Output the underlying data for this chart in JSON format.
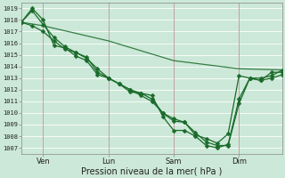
{
  "background_color": "#cce8d8",
  "grid_color": "#b0d8c0",
  "line_color": "#1a6b2a",
  "marker_color": "#1a6b2a",
  "ylabel_ticks": [
    1007,
    1008,
    1009,
    1010,
    1011,
    1012,
    1013,
    1014,
    1015,
    1016,
    1017,
    1018,
    1019
  ],
  "xlim": [
    0,
    96
  ],
  "ylim": [
    1006.5,
    1019.5
  ],
  "xlabel": "Pression niveau de la mer( hPa )",
  "x_tick_positions": [
    8,
    32,
    56,
    80
  ],
  "x_tick_labels": [
    "Ven",
    "Lun",
    "Sam",
    "Dim"
  ],
  "vline_positions": [
    8,
    32,
    56,
    80
  ],
  "series1": {
    "x": [
      0,
      4,
      8,
      12,
      16,
      20,
      24,
      28,
      32,
      36,
      40,
      44,
      48,
      52,
      56,
      60,
      64,
      68,
      72,
      76,
      80,
      84,
      88,
      92,
      96
    ],
    "y": [
      1017.8,
      1018.8,
      1017.6,
      1016.5,
      1015.7,
      1015.2,
      1014.7,
      1013.8,
      1013.0,
      1012.5,
      1012.0,
      1011.7,
      1011.2,
      1010.0,
      1009.3,
      1009.2,
      1008.1,
      1007.8,
      1007.4,
      1008.2,
      1013.2,
      1013.0,
      1012.8,
      1013.5,
      1013.5
    ]
  },
  "series2": {
    "x": [
      0,
      4,
      8,
      12,
      16,
      20,
      24,
      28,
      32,
      36,
      40,
      44,
      48,
      52,
      56,
      60,
      64,
      68,
      72,
      76,
      80,
      84,
      88,
      92,
      96
    ],
    "y": [
      1017.8,
      1019.0,
      1018.0,
      1015.8,
      1015.6,
      1014.9,
      1014.5,
      1013.3,
      1013.0,
      1012.5,
      1011.8,
      1011.7,
      1011.5,
      1009.7,
      1008.5,
      1008.5,
      1008.0,
      1007.2,
      1007.0,
      1007.3,
      1011.2,
      1013.0,
      1013.0,
      1013.2,
      1013.7
    ]
  },
  "series3": {
    "x": [
      0,
      4,
      8,
      12,
      16,
      20,
      24,
      28,
      32,
      36,
      40,
      44,
      48,
      52,
      56,
      60,
      64,
      68,
      72,
      76,
      80,
      84,
      88,
      92,
      96
    ],
    "y": [
      1017.8,
      1017.5,
      1017.0,
      1016.2,
      1015.5,
      1015.2,
      1014.8,
      1013.5,
      1013.0,
      1012.5,
      1012.0,
      1011.5,
      1011.0,
      1010.0,
      1009.5,
      1009.2,
      1008.3,
      1007.5,
      1007.2,
      1007.2,
      1010.8,
      1013.0,
      1012.8,
      1013.0,
      1013.3
    ]
  },
  "series4": {
    "x": [
      0,
      8,
      32,
      56,
      80,
      96
    ],
    "y": [
      1017.8,
      1017.5,
      1016.2,
      1014.5,
      1013.8,
      1013.7
    ]
  }
}
